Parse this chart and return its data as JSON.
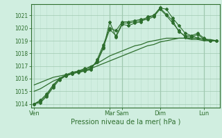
{
  "bg_color": "#d0eee0",
  "grid_color_major": "#a0c8b0",
  "grid_color_minor": "#bcdece",
  "line_color": "#2d6e2d",
  "xlabel": "Pression niveau de la mer( hPa )",
  "ylim": [
    1013.7,
    1021.9
  ],
  "yticks": [
    1014,
    1015,
    1016,
    1017,
    1018,
    1019,
    1020,
    1021
  ],
  "day_labels": [
    "Ven",
    "Mar",
    "Sam",
    "Dim",
    "Lun"
  ],
  "day_positions": [
    0,
    12,
    14,
    20,
    27
  ],
  "n_points": 30,
  "series": [
    [
      1014.0,
      1014.3,
      1014.8,
      1015.5,
      1016.0,
      1016.2,
      1016.4,
      1016.5,
      1016.6,
      1016.7,
      1017.5,
      1018.7,
      1020.0,
      1019.8,
      1020.5,
      1020.5,
      1020.6,
      1020.7,
      1020.8,
      1021.0,
      1021.6,
      1021.5,
      1020.8,
      1020.2,
      1019.6,
      1019.4,
      1019.2,
      1019.1,
      1019.0,
      1019.0
    ],
    [
      1014.0,
      1014.2,
      1014.7,
      1015.4,
      1016.0,
      1016.3,
      1016.5,
      1016.6,
      1016.7,
      1016.8,
      1017.4,
      1018.5,
      1019.9,
      1019.4,
      1020.4,
      1020.4,
      1020.5,
      1020.6,
      1020.7,
      1020.9,
      1021.5,
      1021.0,
      1020.4,
      1019.8,
      1019.3,
      1019.3,
      1019.5,
      1019.1,
      1019.0,
      1019.0
    ],
    [
      1014.0,
      1014.1,
      1014.6,
      1015.3,
      1015.9,
      1016.2,
      1016.4,
      1016.6,
      1016.8,
      1016.9,
      1017.3,
      1018.4,
      1020.5,
      1019.3,
      1020.3,
      1020.2,
      1020.4,
      1020.5,
      1020.9,
      1021.0,
      1021.6,
      1021.1,
      1020.6,
      1019.7,
      1019.4,
      1019.4,
      1019.6,
      1019.2,
      1019.0,
      1019.0
    ],
    [
      1015.0,
      1015.2,
      1015.5,
      1015.8,
      1016.0,
      1016.2,
      1016.4,
      1016.5,
      1016.7,
      1017.0,
      1017.2,
      1017.5,
      1017.8,
      1018.0,
      1018.2,
      1018.4,
      1018.6,
      1018.7,
      1018.9,
      1019.0,
      1019.1,
      1019.2,
      1019.2,
      1019.2,
      1019.2,
      1019.1,
      1019.1,
      1019.0,
      1019.0,
      1019.0
    ],
    [
      1015.5,
      1015.7,
      1015.9,
      1016.1,
      1016.2,
      1016.3,
      1016.4,
      1016.5,
      1016.6,
      1016.8,
      1017.0,
      1017.2,
      1017.4,
      1017.6,
      1017.8,
      1018.0,
      1018.2,
      1018.4,
      1018.6,
      1018.7,
      1018.9,
      1019.0,
      1019.1,
      1019.2,
      1019.2,
      1019.2,
      1019.2,
      1019.1,
      1019.1,
      1019.0
    ]
  ],
  "marker_series": [
    0,
    1,
    2
  ],
  "smooth_series": [
    3,
    4
  ]
}
